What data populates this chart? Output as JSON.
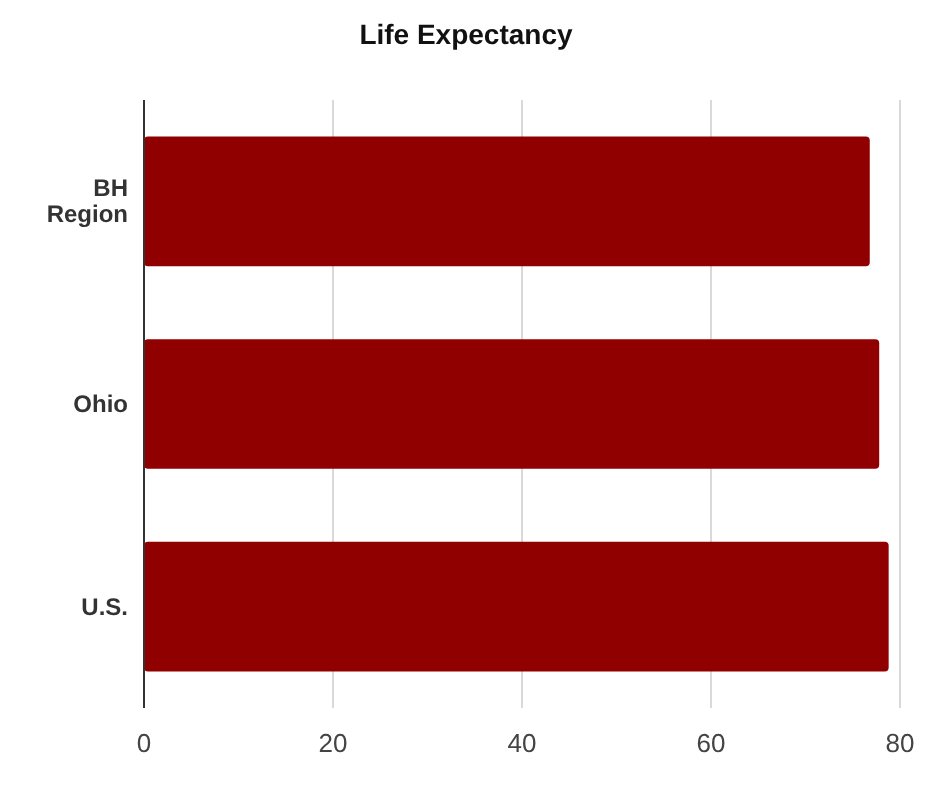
{
  "chart_data": {
    "type": "bar",
    "orientation": "horizontal",
    "title": "Life Expectancy",
    "categories": [
      "BH Region",
      "Ohio",
      "U.S."
    ],
    "values": [
      76.8,
      77.8,
      78.8
    ],
    "color": "#900000",
    "xlim": [
      0,
      80
    ],
    "xticks": [
      0,
      20,
      40,
      60,
      80
    ],
    "grid": "x"
  }
}
